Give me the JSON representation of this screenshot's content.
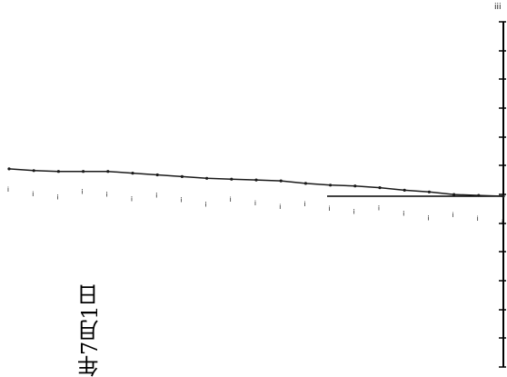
{
  "chart_data": {
    "type": "line",
    "title": "",
    "xlabel": "",
    "ylabel": "",
    "orientation": "rotated-90",
    "date_text": "年7月1日",
    "corner_mark": "ⅰⅰⅰ",
    "grid": false,
    "series": [
      {
        "values": [
          0.32,
          0.3,
          0.29,
          0.29,
          0.29,
          0.27,
          0.25,
          0.23,
          0.21,
          0.2,
          0.19,
          0.18,
          0.15,
          0.13,
          0.12,
          0.1,
          0.07,
          0.05,
          0.02,
          0.01,
          0.0
        ]
      }
    ],
    "ticks": {
      "count": 13,
      "label": "ⅰ"
    }
  },
  "colors": {
    "line": "#1a1a1a",
    "axis": "#000000",
    "background": "#ffffff"
  }
}
